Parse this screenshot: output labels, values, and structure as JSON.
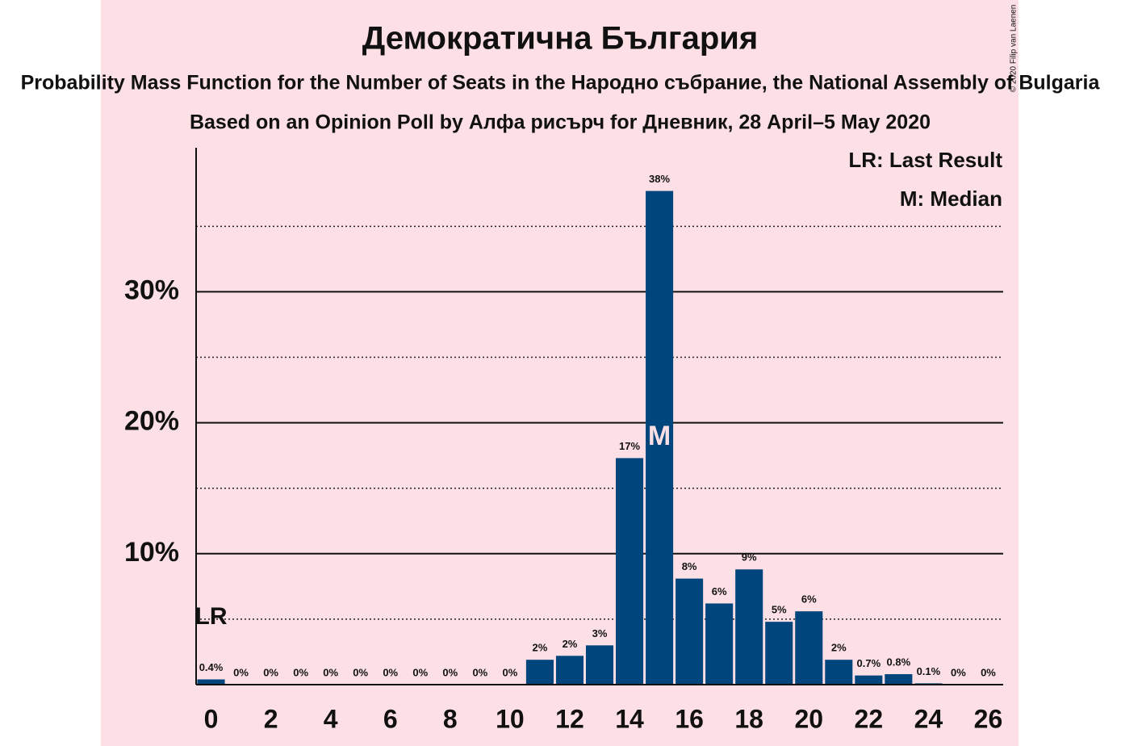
{
  "chart_data": {
    "type": "bar",
    "title": "Демократична България",
    "subtitle": "Probability Mass Function for the Number of Seats in the Народно събрание, the National Assembly of Bulgaria",
    "source": "Based on an Opinion Poll by Алфа рисърч for Дневник, 28 April–5 May 2020",
    "copyright": "© 2020 Filip van Laenen",
    "x": [
      0,
      1,
      2,
      3,
      4,
      5,
      6,
      7,
      8,
      9,
      10,
      11,
      12,
      13,
      14,
      15,
      16,
      17,
      18,
      19,
      20,
      21,
      22,
      23,
      24,
      25,
      26
    ],
    "values": [
      0.4,
      0,
      0,
      0,
      0,
      0,
      0,
      0,
      0,
      0,
      0,
      1.9,
      2.2,
      3.0,
      17.3,
      37.7,
      8.1,
      6.2,
      8.8,
      4.8,
      5.6,
      1.9,
      0.7,
      0.8,
      0.1,
      0,
      0
    ],
    "value_labels": [
      "0.4%",
      "0%",
      "0%",
      "0%",
      "0%",
      "0%",
      "0%",
      "0%",
      "0%",
      "0%",
      "0%",
      "2%",
      "2%",
      "3%",
      "17%",
      "38%",
      "8%",
      "6%",
      "9%",
      "5%",
      "6%",
      "2%",
      "0.7%",
      "0.8%",
      "0.1%",
      "0%",
      "0%"
    ],
    "color": "#00467d",
    "xlim": [
      -0.5,
      26.5
    ],
    "xticks": [
      0,
      2,
      4,
      6,
      8,
      10,
      12,
      14,
      16,
      18,
      20,
      22,
      24,
      26
    ],
    "ylim": [
      0,
      41
    ],
    "yticks": [
      {
        "value": 10,
        "label": "10%"
      },
      {
        "value": 20,
        "label": "20%"
      },
      {
        "value": 30,
        "label": "30%"
      }
    ],
    "minor_gridlines": [
      5,
      15,
      25,
      35
    ],
    "grid": true,
    "last_result": {
      "x": 0,
      "label": "LR"
    },
    "median": {
      "x": 15,
      "label": "M"
    },
    "legend": [
      "LR: Last Result",
      "M: Median"
    ]
  }
}
